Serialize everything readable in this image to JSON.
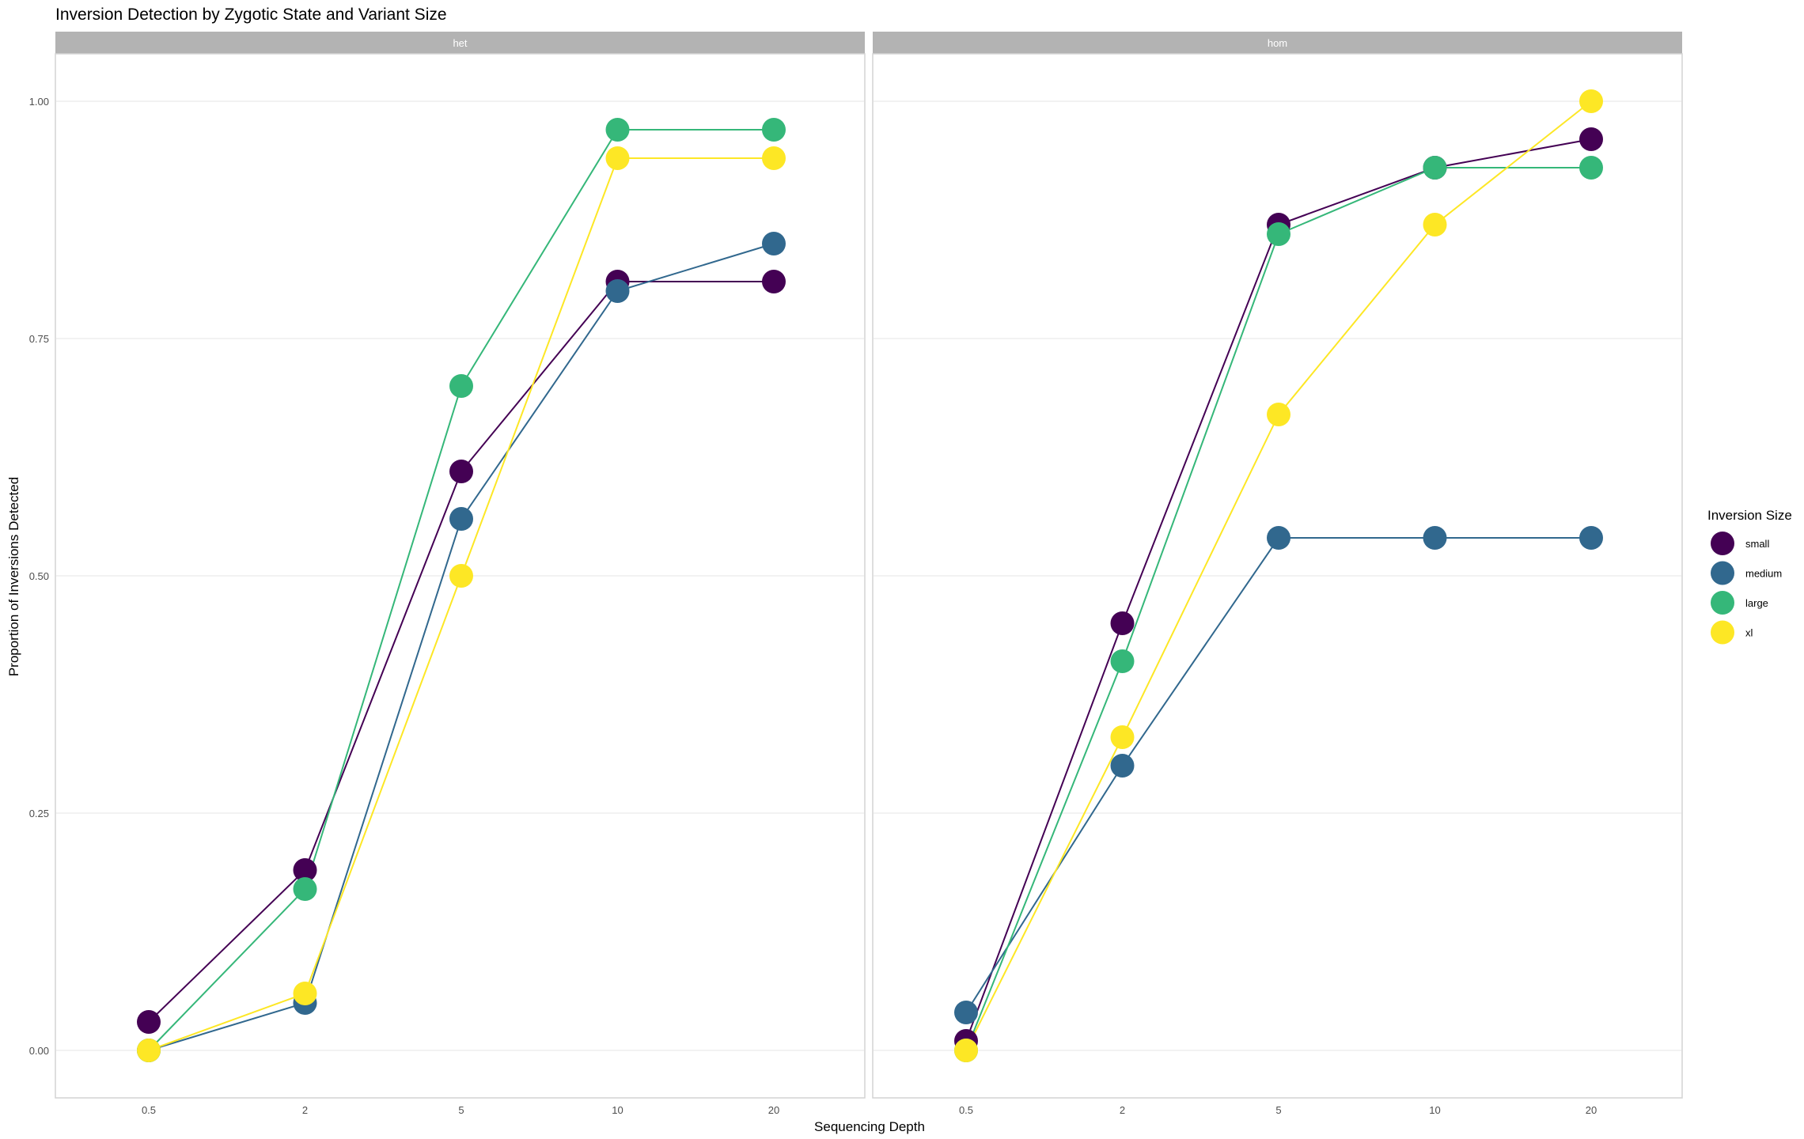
{
  "chart_data": {
    "type": "line",
    "title": "Inversion Detection by Zygotic State and Variant Size",
    "xlabel": "Sequencing Depth",
    "ylabel": "Proportion of Inversions Detected",
    "categories": [
      "0.5",
      "2",
      "5",
      "10",
      "20"
    ],
    "y_ticks": [
      "0.00",
      "0.25",
      "0.50",
      "0.75",
      "1.00"
    ],
    "ylim": [
      -0.05,
      1.05
    ],
    "grid": true,
    "legend": {
      "title": "Inversion Size",
      "position": "right",
      "entries": [
        "small",
        "medium",
        "large",
        "xl"
      ]
    },
    "colors": {
      "small": "#440154",
      "medium": "#31688e",
      "large": "#35b779",
      "xl": "#fde725"
    },
    "panels": [
      {
        "label": "het",
        "series": [
          {
            "name": "small",
            "values": [
              0.03,
              0.19,
              0.61,
              0.81,
              0.81
            ]
          },
          {
            "name": "medium",
            "values": [
              0.0,
              0.05,
              0.56,
              0.8,
              0.85
            ]
          },
          {
            "name": "large",
            "values": [
              0.0,
              0.17,
              0.7,
              0.97,
              0.97
            ]
          },
          {
            "name": "xl",
            "values": [
              0.0,
              0.06,
              0.5,
              0.94,
              0.94
            ]
          }
        ]
      },
      {
        "label": "hom",
        "series": [
          {
            "name": "small",
            "values": [
              0.01,
              0.45,
              0.87,
              0.93,
              0.96
            ]
          },
          {
            "name": "medium",
            "values": [
              0.04,
              0.3,
              0.54,
              0.54,
              0.54
            ]
          },
          {
            "name": "large",
            "values": [
              0.0,
              0.41,
              0.86,
              0.93,
              0.93
            ]
          },
          {
            "name": "xl",
            "values": [
              0.0,
              0.33,
              0.67,
              0.87,
              1.0
            ]
          }
        ]
      }
    ]
  }
}
